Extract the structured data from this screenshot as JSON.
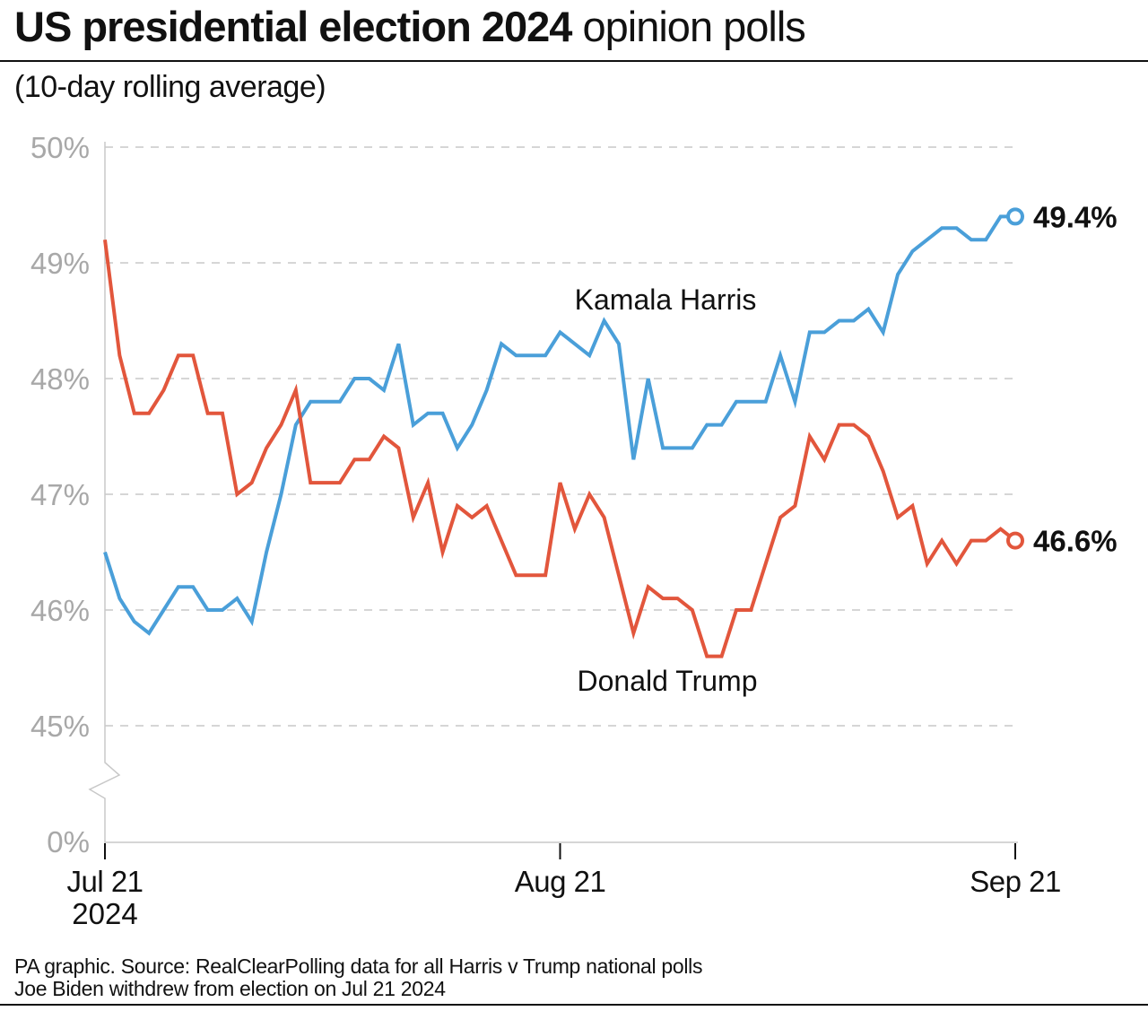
{
  "title_bold": "US presidential election 2024",
  "title_light": "opinion polls",
  "subtitle": "(10-day rolling average)",
  "footer": {
    "source": "PA graphic. Source: RealClearPolling data for all Harris v Trump national polls",
    "note": "Joe Biden withdrew from election on Jul 21 2024"
  },
  "chart_data": {
    "type": "line",
    "title": "US presidential election 2024 opinion polls",
    "subtitle": "(10-day rolling average)",
    "x_range": [
      "2024-07-21",
      "2024-09-21"
    ],
    "x_ticks": [
      {
        "label": "Jul 21",
        "sub": "2024",
        "day": 0
      },
      {
        "label": "Aug 21",
        "sub": "",
        "day": 31
      },
      {
        "label": "Sep 21",
        "sub": "",
        "day": 62
      }
    ],
    "y_ticks": [
      "0%",
      "45%",
      "46%",
      "47%",
      "48%",
      "49%",
      "50%"
    ],
    "y_tick_values": [
      0,
      45,
      46,
      47,
      48,
      49,
      50
    ],
    "ylim": [
      45,
      50
    ],
    "y_axis_break": "between 0% and 45%",
    "grid": "horizontal dashed",
    "series": [
      {
        "name": "Kamala Harris",
        "color": "#4a9fd9",
        "end_label": "49.4%",
        "values": [
          46.5,
          46.1,
          45.9,
          45.8,
          46.0,
          46.2,
          46.2,
          46.0,
          46.0,
          46.1,
          45.9,
          46.5,
          47.0,
          47.6,
          47.8,
          47.8,
          47.8,
          48.0,
          48.0,
          47.9,
          48.3,
          47.6,
          47.7,
          47.7,
          47.4,
          47.6,
          47.9,
          48.3,
          48.2,
          48.2,
          48.2,
          48.4,
          48.3,
          48.2,
          48.5,
          48.3,
          47.3,
          48.0,
          47.4,
          47.4,
          47.4,
          47.6,
          47.6,
          47.8,
          47.8,
          47.8,
          48.2,
          47.8,
          48.4,
          48.4,
          48.5,
          48.5,
          48.6,
          48.4,
          48.9,
          49.1,
          49.2,
          49.3,
          49.3,
          49.2,
          49.2,
          49.4,
          49.4
        ]
      },
      {
        "name": "Donald Trump",
        "color": "#e2563c",
        "end_label": "46.6%",
        "values": [
          49.2,
          48.2,
          47.7,
          47.7,
          47.9,
          48.2,
          48.2,
          47.7,
          47.7,
          47.0,
          47.1,
          47.4,
          47.6,
          47.9,
          47.1,
          47.1,
          47.1,
          47.3,
          47.3,
          47.5,
          47.4,
          46.8,
          47.1,
          46.5,
          46.9,
          46.8,
          46.9,
          46.6,
          46.3,
          46.3,
          46.3,
          47.1,
          46.7,
          47.0,
          46.8,
          46.3,
          45.8,
          46.2,
          46.1,
          46.1,
          46.0,
          45.6,
          45.6,
          46.0,
          46.0,
          46.4,
          46.8,
          46.9,
          47.5,
          47.3,
          47.6,
          47.6,
          47.5,
          47.2,
          46.8,
          46.9,
          46.4,
          46.6,
          46.4,
          46.6,
          46.6,
          46.7,
          46.6
        ]
      }
    ]
  }
}
